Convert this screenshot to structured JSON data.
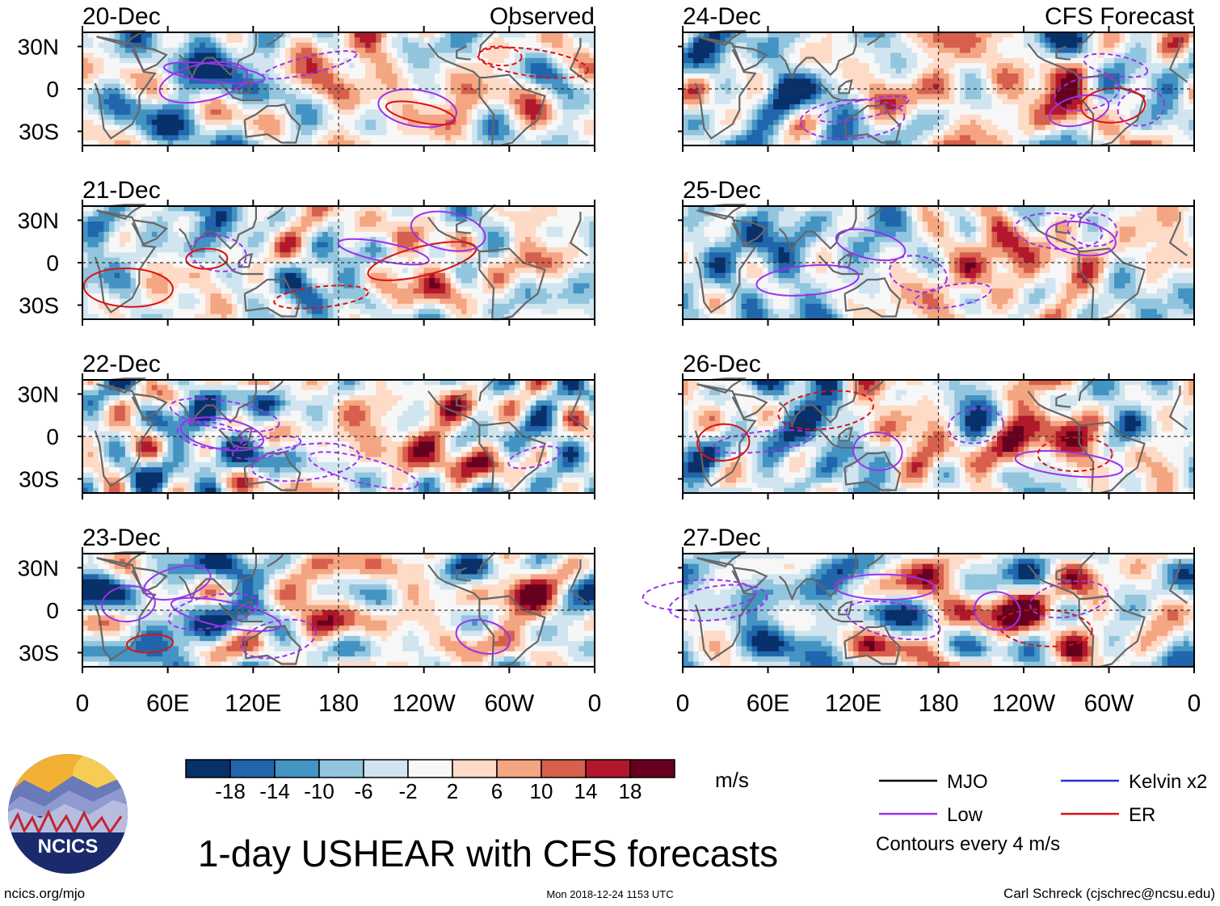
{
  "chart_data": {
    "type": "heatmap",
    "title": "1-day USHEAR with CFS forecasts",
    "variable": "USHEAR",
    "units": "m/s",
    "observed_label": "Observed",
    "forecast_label": "CFS Forecast",
    "longitude_ticks": [
      "0",
      "60E",
      "120E",
      "180",
      "120W",
      "60W",
      "0"
    ],
    "longitude_range": [
      0,
      360
    ],
    "latitude_ticks": [
      "30N",
      "0",
      "30S"
    ],
    "latitude_range": [
      -40,
      40
    ],
    "observed_panels": [
      {
        "date": "20-Dec"
      },
      {
        "date": "21-Dec"
      },
      {
        "date": "22-Dec"
      },
      {
        "date": "23-Dec"
      }
    ],
    "forecast_panels": [
      {
        "date": "24-Dec"
      },
      {
        "date": "25-Dec"
      },
      {
        "date": "26-Dec"
      },
      {
        "date": "27-Dec"
      }
    ],
    "colorbar": {
      "labels": [
        "-18",
        "-14",
        "-10",
        "-6",
        "-2",
        "2",
        "6",
        "10",
        "14",
        "18"
      ],
      "colors": [
        "#08306b",
        "#2166ac",
        "#4393c3",
        "#92c5de",
        "#d1e5f0",
        "#f7f7f7",
        "#fddbc7",
        "#f4a582",
        "#d6604d",
        "#b2182b",
        "#67001f"
      ]
    },
    "contour_legend": [
      {
        "label": "MJO",
        "color": "#000000"
      },
      {
        "label": "Kelvin x2",
        "color": "#2233cc"
      },
      {
        "label": "Low",
        "color": "#9933ee"
      },
      {
        "label": "ER",
        "color": "#dd1111"
      }
    ],
    "contour_note": "Contours every 4 m/s"
  },
  "footer": {
    "left": "ncics.org/mjo",
    "center": "Mon 2018-12-24 1153 UTC",
    "right": "Carl Schreck (cjschrec@ncsu.edu)"
  },
  "logo": {
    "text": "NCICS"
  }
}
